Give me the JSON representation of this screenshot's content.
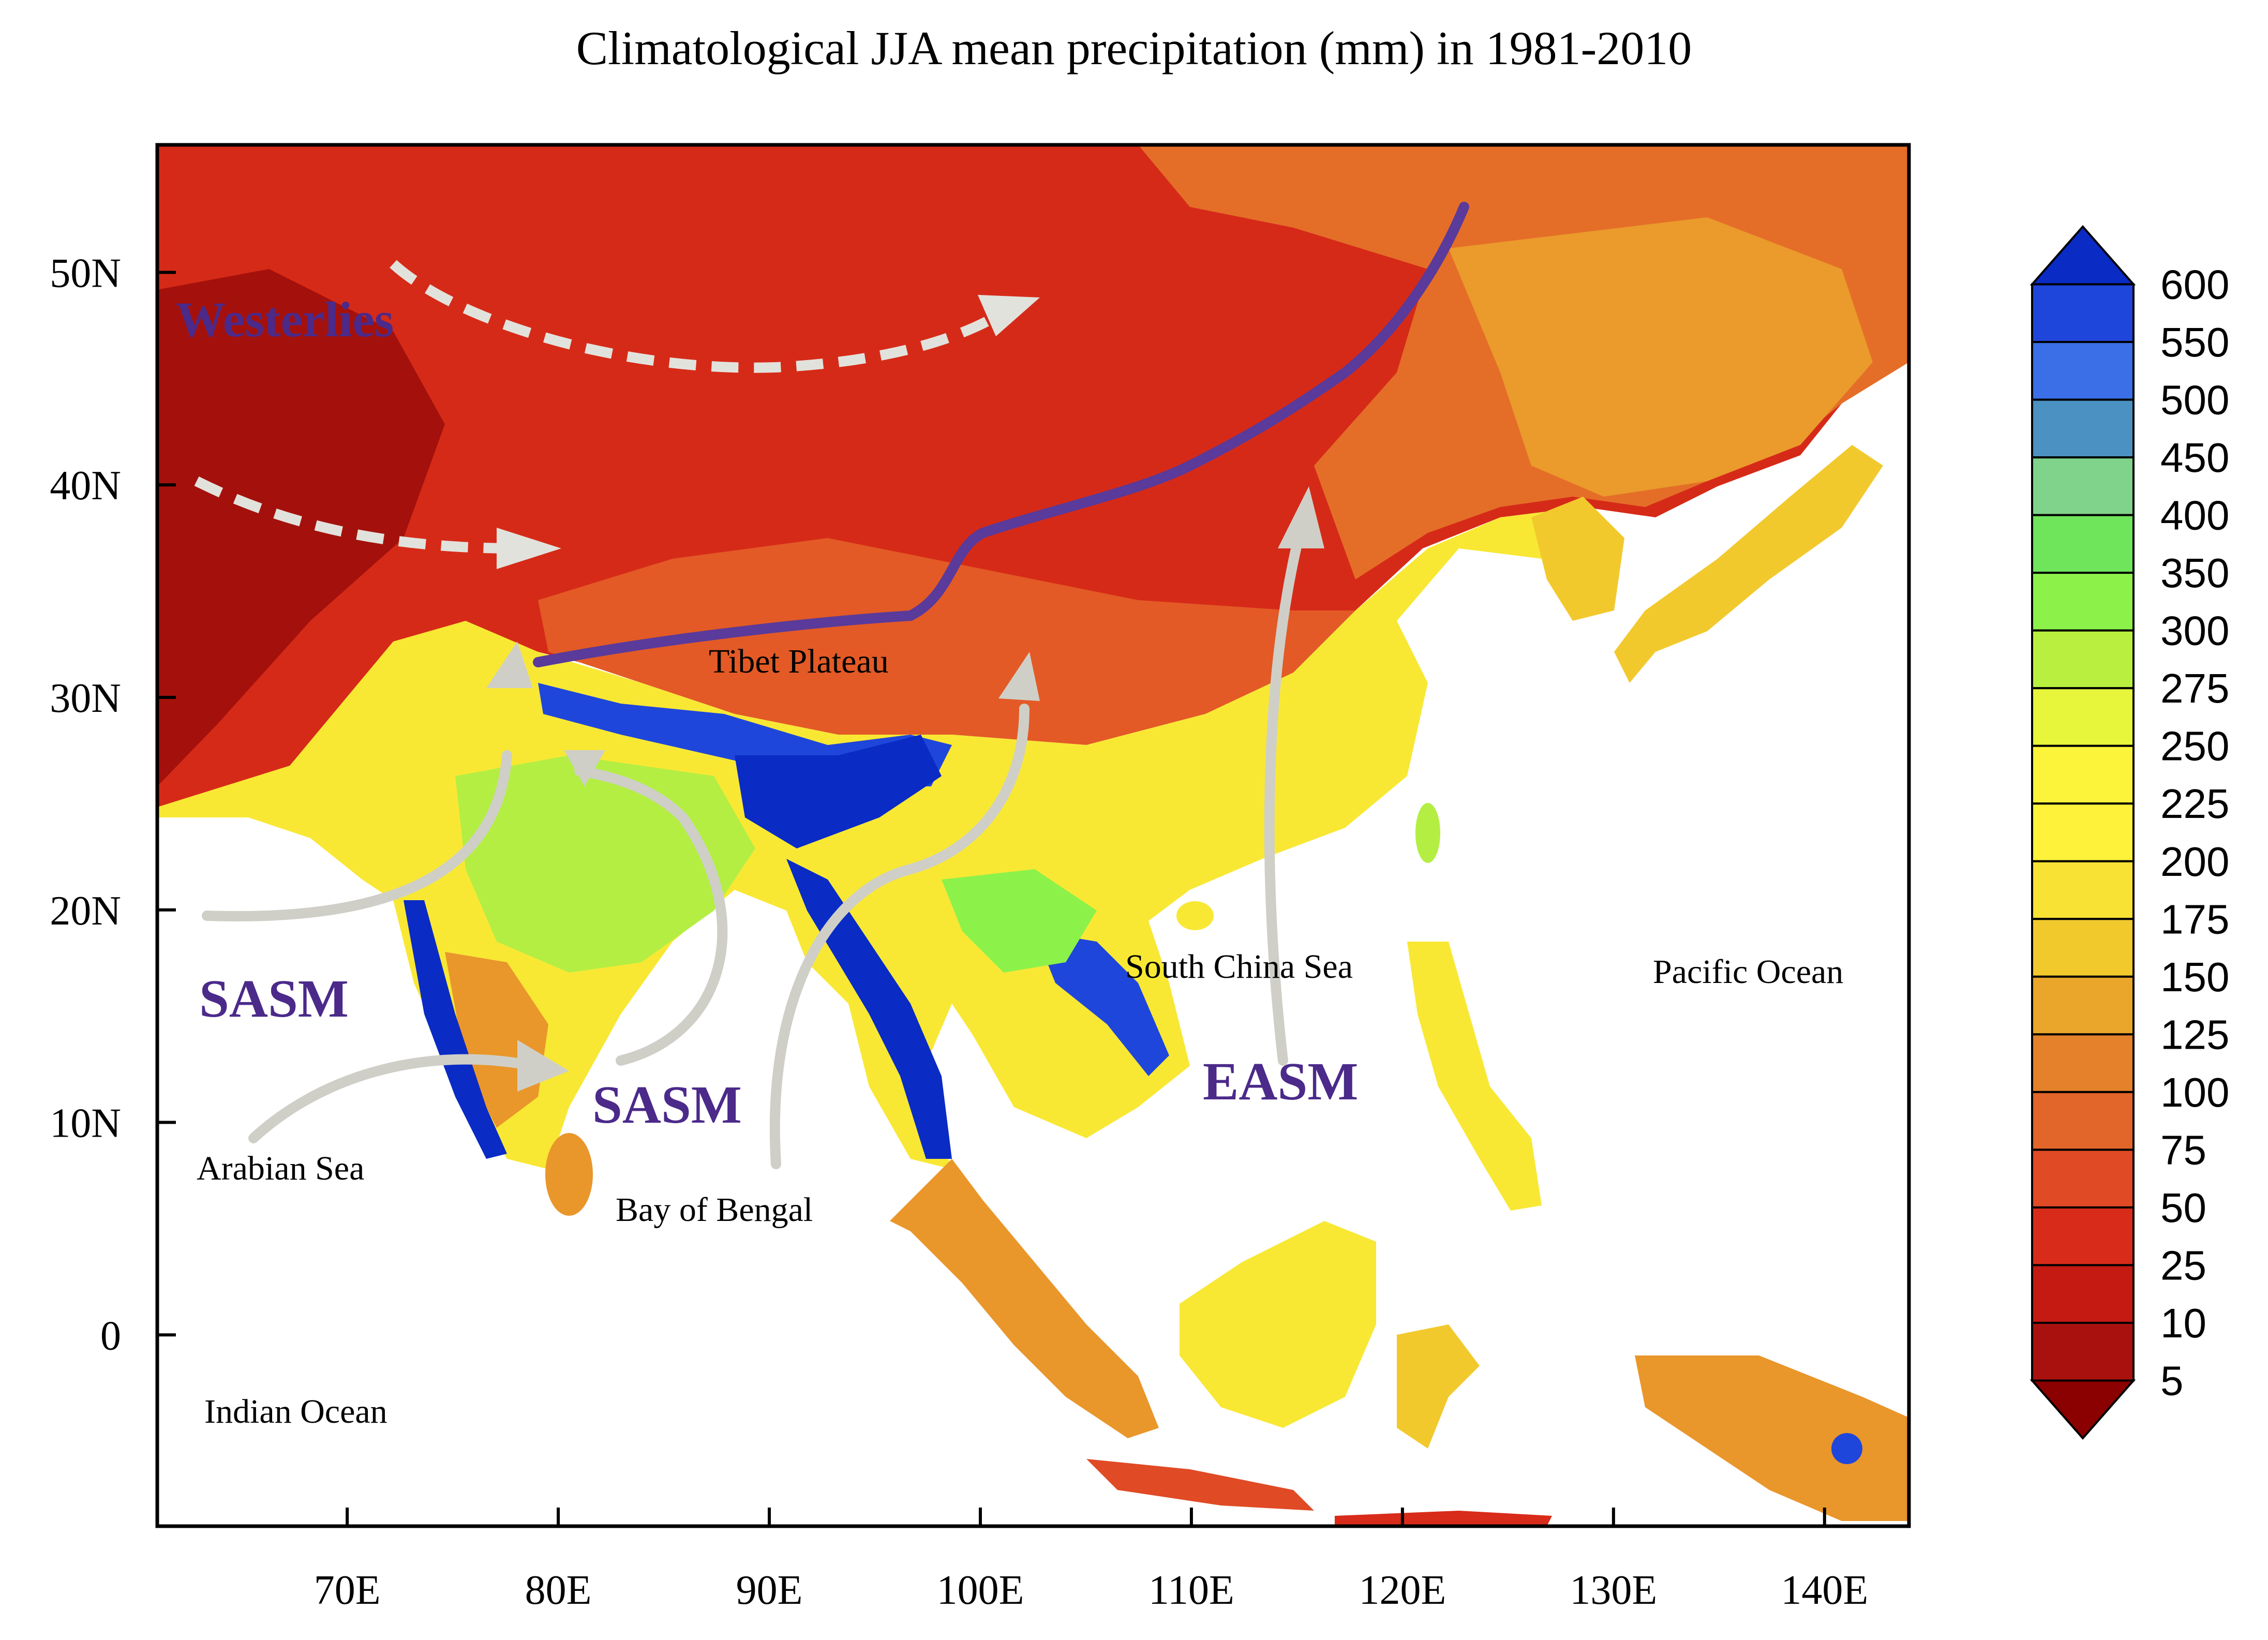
{
  "title": "Climatological JJA mean precipitation (mm) in 1981-2010",
  "map": {
    "lon_range": [
      61,
      144
    ],
    "lat_range": [
      -9,
      56
    ],
    "x_ticks": [
      "70E",
      "80E",
      "90E",
      "100E",
      "110E",
      "120E",
      "130E",
      "140E"
    ],
    "y_ticks": [
      "50N",
      "40N",
      "30N",
      "20N",
      "10N",
      "0"
    ],
    "labels": {
      "westerlies": "Westerlies",
      "tibet": "Tibet Plateau",
      "sasm_west": "SASM",
      "sasm_east": "SASM",
      "easm": "EASM",
      "south_china_sea": "South China Sea",
      "pacific": "Pacific Ocean",
      "arabian_sea": "Arabian Sea",
      "bay_of_bengal": "Bay of Bengal",
      "indian_ocean": "Indian Ocean"
    },
    "colors": {
      "label_purple": "#4b2a8a",
      "jet_line": "#5a3a9a",
      "arrow_gray": "#cfcfc8",
      "westerly_dash": "#e2e2dc"
    }
  },
  "colorbar": {
    "levels": [
      "600",
      "550",
      "500",
      "450",
      "400",
      "350",
      "300",
      "275",
      "250",
      "225",
      "200",
      "175",
      "150",
      "125",
      "100",
      "75",
      "50",
      "25",
      "10",
      "5"
    ],
    "colors_top_to_bottom": [
      "#0a2bc4",
      "#1f46da",
      "#3a6fe8",
      "#4b91c2",
      "#7fd38a",
      "#6ee55a",
      "#8cf24a",
      "#b9f040",
      "#e7f53b",
      "#fbf43a",
      "#fff23a",
      "#f8e233",
      "#f2c92d",
      "#e9a62a",
      "#e4812a",
      "#e2652a",
      "#e04a24",
      "#d92b1a",
      "#c41a12",
      "#a9110e",
      "#8b0000"
    ]
  }
}
